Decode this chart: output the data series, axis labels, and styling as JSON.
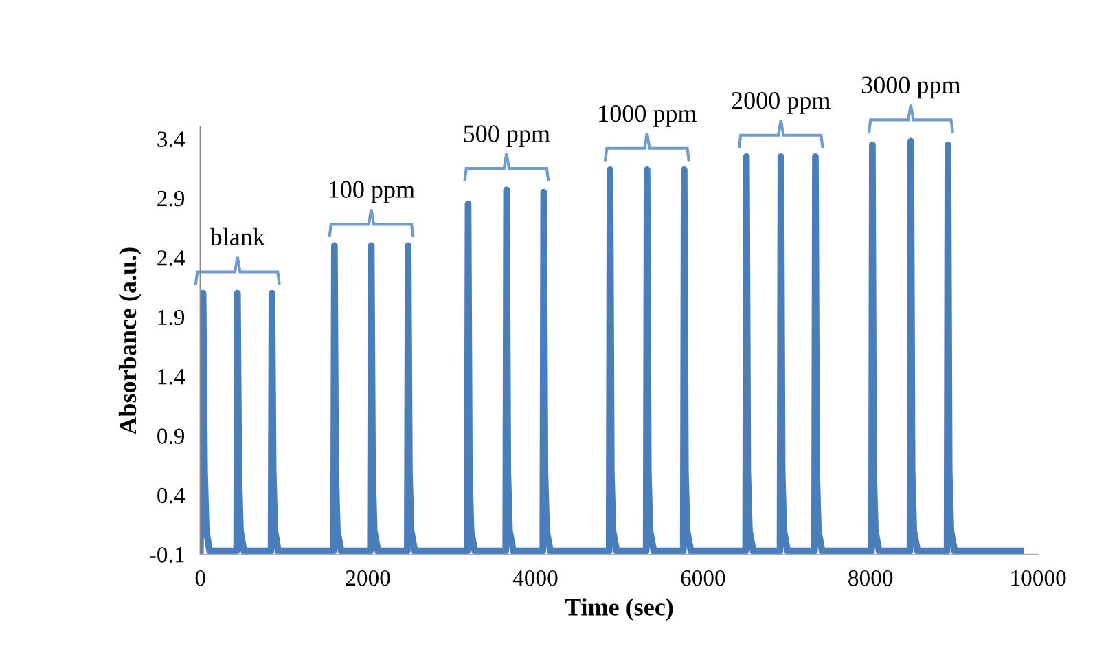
{
  "chart_data": {
    "type": "line",
    "xlabel": "Time (sec)",
    "ylabel": "Absorbance (a.u.)",
    "xlim": [
      0,
      10000
    ],
    "xticks": [
      0,
      2000,
      4000,
      6000,
      8000,
      10000
    ],
    "ylim": [
      -0.1,
      3.5
    ],
    "yticks": [
      -0.1,
      0.4,
      0.9,
      1.4,
      1.9,
      2.4,
      2.9,
      3.4
    ],
    "grid": false,
    "legend": false,
    "marker": "none",
    "line_style": "solid",
    "series": [
      {
        "color": "#4a7ebb",
        "x": [
          0,
          32,
          50,
          70,
          110,
          433,
          443,
          458,
          478,
          520,
          844,
          854,
          869,
          889,
          930,
          1590,
          1600,
          1615,
          1635,
          1680,
          2030,
          2040,
          2055,
          2075,
          2120,
          2470,
          2480,
          2495,
          2515,
          2560,
          3186,
          3196,
          3211,
          3231,
          3276,
          3645,
          3655,
          3670,
          3690,
          3735,
          4088,
          4098,
          4113,
          4133,
          4178,
          4880,
          4890,
          4905,
          4925,
          4970,
          5322,
          5332,
          5347,
          5367,
          5412,
          5765,
          5775,
          5790,
          5810,
          5855,
          6509,
          6519,
          6534,
          6554,
          6599,
          6920,
          6930,
          6945,
          6965,
          7010,
          7332,
          7342,
          7357,
          7377,
          7422,
          8012,
          8022,
          8037,
          8057,
          8102,
          8471,
          8481,
          8496,
          8516,
          8561,
          8914,
          8924,
          8939,
          8959,
          9004,
          9795
        ],
        "values": [
          -0.07,
          2.1,
          0.6,
          0.1,
          -0.07,
          -0.07,
          2.1,
          0.6,
          0.1,
          -0.07,
          -0.07,
          2.1,
          0.6,
          0.1,
          -0.07,
          -0.07,
          2.5,
          0.6,
          0.1,
          -0.07,
          -0.07,
          2.5,
          0.6,
          0.1,
          -0.07,
          -0.07,
          2.5,
          0.6,
          0.1,
          -0.07,
          -0.07,
          2.85,
          0.6,
          0.1,
          -0.07,
          -0.07,
          2.97,
          0.6,
          0.1,
          -0.07,
          -0.07,
          2.95,
          0.6,
          0.1,
          -0.07,
          -0.07,
          3.14,
          0.6,
          0.1,
          -0.07,
          -0.07,
          3.14,
          0.6,
          0.1,
          -0.07,
          -0.07,
          3.14,
          0.6,
          0.1,
          -0.07,
          -0.07,
          3.25,
          0.6,
          0.1,
          -0.07,
          -0.07,
          3.25,
          0.6,
          0.1,
          -0.07,
          -0.07,
          3.25,
          0.6,
          0.1,
          -0.07,
          -0.07,
          3.35,
          0.6,
          0.1,
          -0.07,
          -0.07,
          3.38,
          0.6,
          0.1,
          -0.07,
          -0.07,
          3.35,
          0.6,
          0.1,
          -0.07,
          -0.07
        ]
      }
    ],
    "annotations": [
      {
        "text": "blank",
        "x": 443,
        "y": 2.1
      },
      {
        "text": "100 ppm",
        "x": 2040,
        "y": 2.5
      },
      {
        "text": "500 ppm",
        "x": 3655,
        "y": 2.97
      },
      {
        "text": "1000 ppm",
        "x": 5332,
        "y": 3.14
      },
      {
        "text": "2000 ppm",
        "x": 6930,
        "y": 3.25
      },
      {
        "text": "3000 ppm",
        "x": 8481,
        "y": 3.38
      }
    ]
  }
}
